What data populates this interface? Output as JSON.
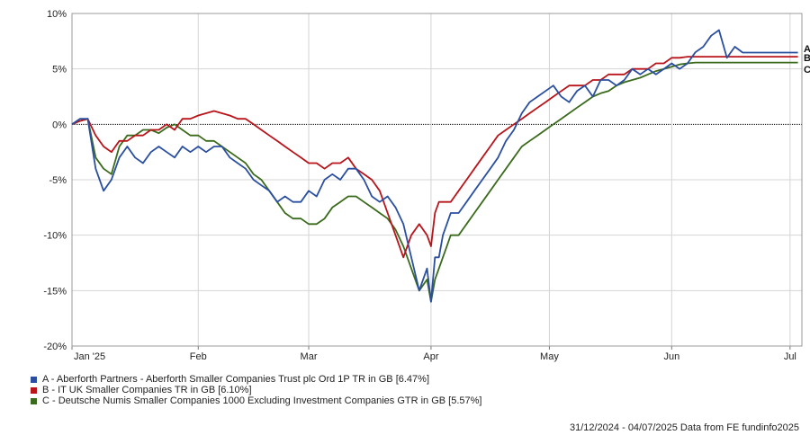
{
  "chart_data": {
    "type": "line",
    "y_ticks": [
      "10%",
      "5%",
      "0%",
      "-5%",
      "-10%",
      "-15%",
      "-20%"
    ],
    "y_tick_values": [
      10,
      5,
      0,
      -5,
      -10,
      -15,
      -20
    ],
    "ylim": [
      -20,
      10
    ],
    "x_months": [
      "Jan '25",
      "Feb",
      "Mar",
      "Apr",
      "May",
      "Jun",
      "Jul"
    ],
    "x_month_days": [
      0,
      32,
      60,
      91,
      121,
      152,
      182
    ],
    "xlim": [
      0,
      185
    ],
    "grid": true,
    "zero_line": "dotted",
    "series": [
      {
        "name": "A - Aberforth Partners - Aberforth Smaller Companies Trust plc Ord 1P TR in GB [6.47%]",
        "end_label": "A",
        "color": "#2a4fa0",
        "x": [
          0,
          2,
          4,
          6,
          8,
          10,
          12,
          14,
          16,
          18,
          20,
          22,
          24,
          26,
          28,
          30,
          32,
          34,
          36,
          38,
          40,
          42,
          44,
          46,
          48,
          50,
          52,
          54,
          56,
          58,
          60,
          62,
          64,
          66,
          68,
          70,
          72,
          74,
          76,
          78,
          80,
          82,
          84,
          86,
          88,
          90,
          91,
          92,
          93,
          94,
          95,
          96,
          97,
          98,
          100,
          102,
          104,
          106,
          108,
          110,
          112,
          114,
          116,
          118,
          120,
          122,
          124,
          126,
          128,
          130,
          132,
          134,
          136,
          138,
          140,
          142,
          144,
          146,
          148,
          150,
          152,
          154,
          156,
          158,
          160,
          162,
          164,
          166,
          168,
          170,
          172,
          174,
          176,
          178,
          180,
          181,
          182,
          183,
          184
        ],
        "y": [
          0,
          0.5,
          0.5,
          -4,
          -6,
          -5,
          -3,
          -2,
          -3,
          -3.5,
          -2.5,
          -2,
          -2.5,
          -3,
          -2,
          -2.5,
          -2,
          -2.5,
          -2,
          -2,
          -3,
          -3.5,
          -4,
          -5,
          -5.5,
          -6,
          -7,
          -6.5,
          -7,
          -7,
          -6,
          -6.5,
          -5,
          -4.5,
          -5,
          -4,
          -4,
          -5,
          -6.5,
          -7,
          -6.5,
          -7.5,
          -9,
          -12,
          -15,
          -13,
          -16,
          -12,
          -12,
          -10,
          -9,
          -8,
          -8,
          -8,
          -7,
          -6,
          -5,
          -4,
          -3,
          -1.5,
          -0.5,
          1,
          2,
          2.5,
          3,
          3.5,
          2.5,
          2,
          3,
          3.5,
          2.5,
          4,
          4,
          3.5,
          4,
          5,
          4.5,
          5,
          4.5,
          5,
          5.5,
          5,
          5.5,
          6.5,
          7,
          8,
          8.5,
          6,
          7,
          6.47,
          6.47,
          6.47,
          6.47,
          6.47,
          6.47,
          6.47,
          6.47,
          6.47,
          6.47
        ]
      },
      {
        "name": "B - IT UK Smaller Companies TR in GB [6.10%]",
        "end_label": "B",
        "color": "#b8141a",
        "x": [
          0,
          2,
          4,
          6,
          8,
          10,
          12,
          14,
          16,
          18,
          20,
          22,
          24,
          26,
          28,
          30,
          32,
          34,
          36,
          38,
          40,
          42,
          44,
          46,
          48,
          50,
          52,
          54,
          56,
          58,
          60,
          62,
          64,
          66,
          68,
          70,
          72,
          74,
          76,
          78,
          80,
          82,
          84,
          86,
          88,
          90,
          91,
          92,
          93,
          94,
          95,
          96,
          97,
          98,
          100,
          102,
          104,
          106,
          108,
          110,
          112,
          114,
          116,
          118,
          120,
          122,
          124,
          126,
          128,
          130,
          132,
          134,
          136,
          138,
          140,
          142,
          144,
          146,
          148,
          150,
          152,
          154,
          156,
          158,
          160,
          162,
          164,
          166,
          168,
          170,
          172,
          174,
          176,
          178,
          180,
          181,
          182,
          183,
          184
        ],
        "y": [
          0,
          0.3,
          0.5,
          -1,
          -2,
          -2.5,
          -1.5,
          -1.5,
          -1,
          -1,
          -0.5,
          -0.5,
          0,
          -0.5,
          0.5,
          0.5,
          0.8,
          1,
          1.2,
          1,
          0.8,
          0.5,
          0.5,
          0,
          -0.5,
          -1,
          -1.5,
          -2,
          -2.5,
          -3,
          -3.5,
          -3.5,
          -4,
          -3.5,
          -3.5,
          -3,
          -4,
          -4.5,
          -5,
          -6,
          -8,
          -10,
          -12,
          -10,
          -9,
          -10,
          -11,
          -8,
          -7,
          -7,
          -7,
          -7,
          -6.5,
          -6,
          -5,
          -4,
          -3,
          -2,
          -1,
          -0.5,
          0,
          0.5,
          1,
          1.5,
          2,
          2.5,
          3,
          3.5,
          3.5,
          3.5,
          4,
          4,
          4.5,
          4.5,
          4.5,
          5,
          5,
          5,
          5.5,
          5.5,
          6,
          6,
          6.1,
          6.1,
          6.1,
          6.1,
          6.1,
          6.1,
          6.1,
          6.1,
          6.1,
          6.1,
          6.1,
          6.1,
          6.1,
          6.1,
          6.1,
          6.1,
          6.1
        ]
      },
      {
        "name": "C - Deutsche Numis Smaller Companies 1000 Excluding Investment Companies GTR in GB [5.57%]",
        "end_label": "C",
        "color": "#3a6b1c",
        "x": [
          0,
          2,
          4,
          6,
          8,
          10,
          12,
          14,
          16,
          18,
          20,
          22,
          24,
          26,
          28,
          30,
          32,
          34,
          36,
          38,
          40,
          42,
          44,
          46,
          48,
          50,
          52,
          54,
          56,
          58,
          60,
          62,
          64,
          66,
          68,
          70,
          72,
          74,
          76,
          78,
          80,
          82,
          84,
          86,
          88,
          90,
          91,
          92,
          93,
          94,
          95,
          96,
          97,
          98,
          100,
          102,
          104,
          106,
          108,
          110,
          112,
          114,
          116,
          118,
          120,
          122,
          124,
          126,
          128,
          130,
          132,
          134,
          136,
          138,
          140,
          142,
          144,
          146,
          148,
          150,
          152,
          154,
          156,
          158,
          160,
          162,
          164,
          166,
          168,
          170,
          172,
          174,
          176,
          178,
          180,
          181,
          182,
          183,
          184
        ],
        "y": [
          0,
          0.3,
          0.5,
          -3,
          -4,
          -4.5,
          -2,
          -1,
          -1,
          -0.5,
          -0.5,
          -0.8,
          -0.3,
          0,
          -0.5,
          -1,
          -1,
          -1.5,
          -1.5,
          -2,
          -2.5,
          -3,
          -3.5,
          -4.5,
          -5,
          -6,
          -7,
          -8,
          -8.5,
          -8.5,
          -9,
          -9,
          -8.5,
          -7.5,
          -7,
          -6.5,
          -6.5,
          -7,
          -7.5,
          -8,
          -8.5,
          -9.5,
          -11,
          -13,
          -15,
          -14,
          -16,
          -14,
          -13,
          -12,
          -11,
          -10,
          -10,
          -10,
          -9,
          -8,
          -7,
          -6,
          -5,
          -4,
          -3,
          -2,
          -1.5,
          -1,
          -0.5,
          0,
          0.5,
          1,
          1.5,
          2,
          2.5,
          2.8,
          3,
          3.5,
          3.8,
          4,
          4.2,
          4.5,
          4.8,
          5,
          5.2,
          5.4,
          5.5,
          5.57,
          5.57,
          5.57,
          5.57,
          5.57,
          5.57,
          5.57,
          5.57,
          5.57,
          5.57,
          5.57,
          5.57,
          5.57,
          5.57,
          5.57,
          5.57
        ]
      }
    ]
  },
  "legend": [
    {
      "label": "A - Aberforth Partners - Aberforth Smaller Companies Trust plc Ord 1P TR in GB [6.47%]",
      "color": "#2a4fa0"
    },
    {
      "label": "B - IT UK Smaller Companies TR in GB [6.10%]",
      "color": "#b8141a"
    },
    {
      "label": "C - Deutsche Numis Smaller Companies 1000 Excluding Investment Companies GTR in GB [5.57%]",
      "color": "#3a6b1c"
    }
  ],
  "footer": "31/12/2024 - 04/07/2025 Data from FE fundinfo2025"
}
